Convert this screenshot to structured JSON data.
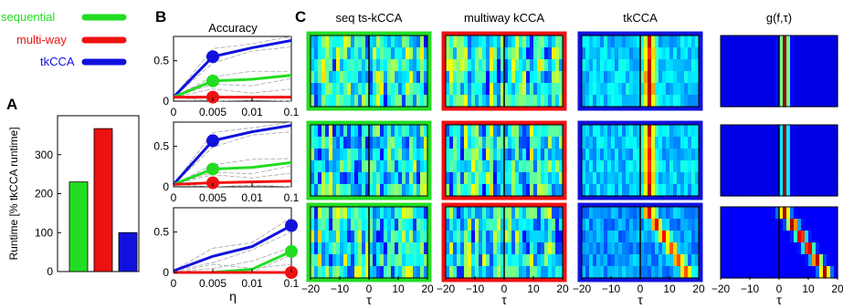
{
  "legend": [
    {
      "label": "sequential",
      "color": "#22dd22"
    },
    {
      "label": "multi-way",
      "color": "#ee1111"
    },
    {
      "label": "tkCCA",
      "color": "#1111dd"
    }
  ],
  "panel_letters": {
    "a": "A",
    "b": "B",
    "c": "C"
  },
  "heatmap": {
    "titles": [
      "seq ts-kCCA",
      "multiway kCCA",
      "tkCCA",
      "g(f,τ)"
    ],
    "border_colors": [
      "#22dd22",
      "#ee1111",
      "#1111dd",
      ""
    ],
    "xticks": [
      "−20",
      "−10",
      "0",
      "10",
      "20"
    ],
    "xlabel": "τ"
  },
  "chart_data": [
    {
      "type": "bar",
      "panel": "A",
      "categories": [
        "sequential",
        "multi-way",
        "tkCCA"
      ],
      "values": [
        230,
        367,
        100
      ],
      "colors": [
        "#22dd22",
        "#ee1111",
        "#1111dd"
      ],
      "ylabel": "Runtime [% tkCCA runtime]",
      "ylim": [
        0,
        400
      ],
      "yticks": [
        0,
        100,
        200,
        300
      ]
    },
    {
      "type": "line",
      "panel": "B",
      "title": "Accuracy",
      "xlabel": "η",
      "xlim": [
        0,
        0.1
      ],
      "ylim": [
        0,
        0.8
      ],
      "xtick_labels": [
        "0",
        "0.005",
        "0.01",
        "0.1"
      ],
      "ytick_labels": [
        "0",
        "0.5"
      ],
      "subplots": [
        {
          "series": [
            {
              "color": "#1111dd",
              "values": [
                0.05,
                0.55,
                0.66,
                0.75
              ],
              "marker_index": 1
            },
            {
              "color": "#22dd22",
              "values": [
                0.05,
                0.25,
                0.27,
                0.32
              ],
              "marker_index": 1
            },
            {
              "color": "#ee1111",
              "values": [
                0.05,
                0.05,
                0.05,
                0.05
              ],
              "marker_index": 1
            }
          ]
        },
        {
          "series": [
            {
              "color": "#1111dd",
              "values": [
                0.03,
                0.57,
                0.68,
                0.76
              ],
              "marker_index": 1
            },
            {
              "color": "#22dd22",
              "values": [
                0.03,
                0.22,
                0.24,
                0.3
              ],
              "marker_index": 1
            },
            {
              "color": "#ee1111",
              "values": [
                0.03,
                0.05,
                0.06,
                0.07
              ],
              "marker_index": 1
            }
          ]
        },
        {
          "series": [
            {
              "color": "#1111dd",
              "values": [
                0.02,
                0.2,
                0.32,
                0.58
              ],
              "marker_index": 3
            },
            {
              "color": "#22dd22",
              "values": [
                0.0,
                0.0,
                0.04,
                0.26
              ],
              "marker_index": 3
            },
            {
              "color": "#ee1111",
              "values": [
                0.0,
                0.0,
                0.0,
                0.0
              ],
              "marker_index": 3
            }
          ]
        }
      ]
    },
    {
      "type": "heatmap",
      "panel": "C",
      "x": [
        -20,
        20
      ],
      "rows": 3,
      "columns": 4,
      "colormap": "jet"
    }
  ]
}
